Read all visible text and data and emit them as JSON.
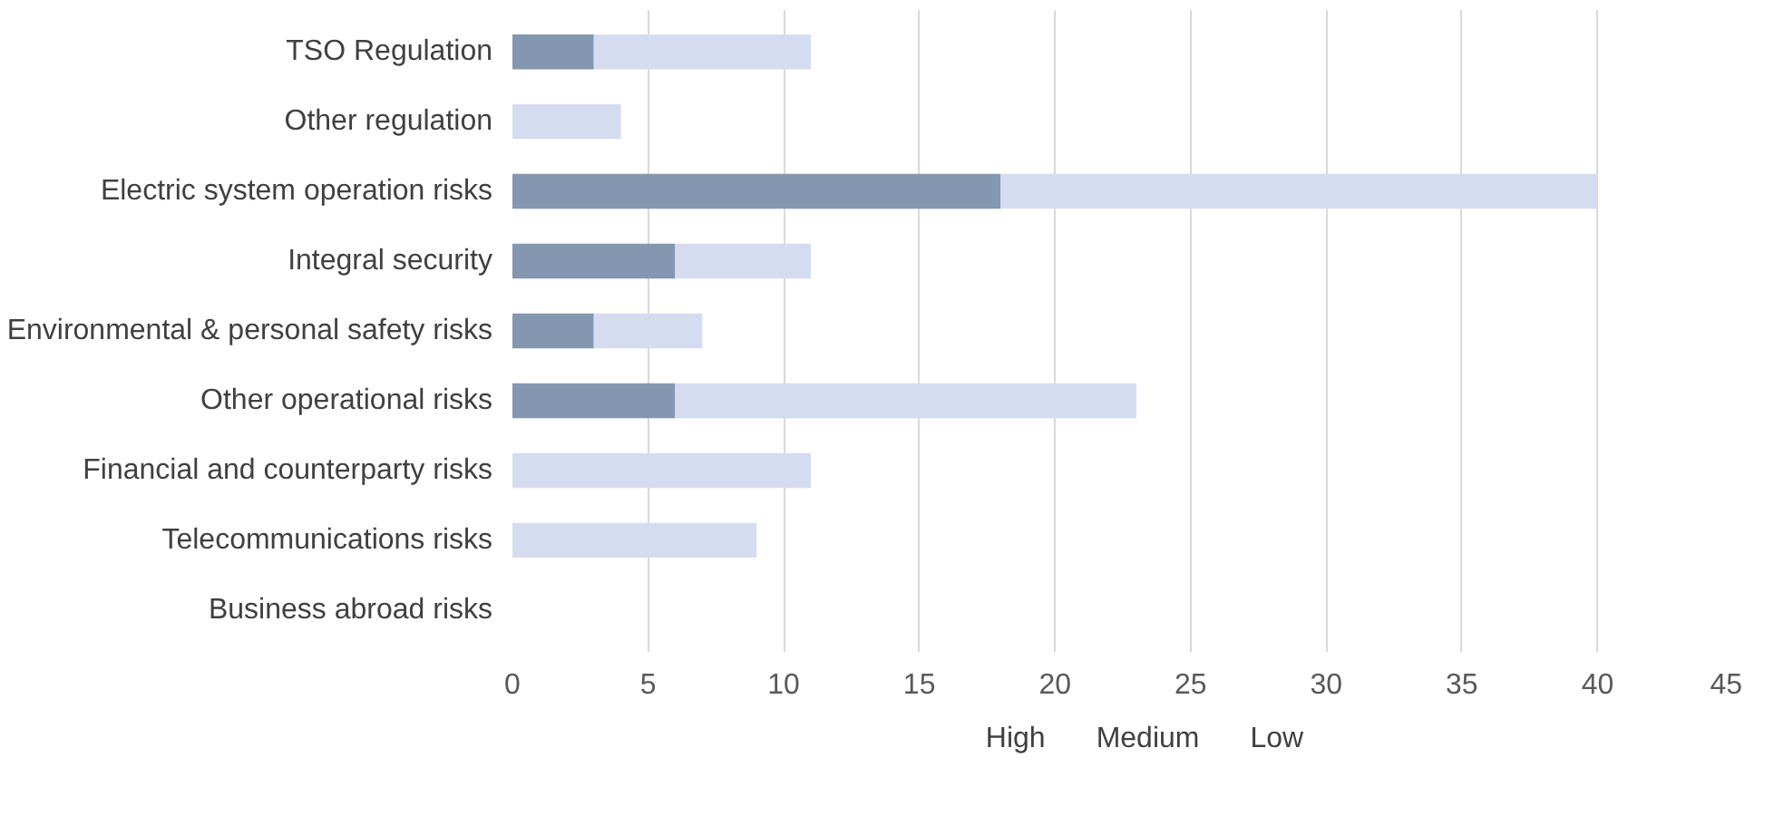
{
  "chart_data": {
    "type": "bar",
    "orientation": "horizontal",
    "stacked": true,
    "categories": [
      "TSO Regulation",
      "Other regulation",
      "Electric system operation risks",
      "Integral security",
      "Environmental & personal safety risks",
      "Other operational risks",
      "Financial and counterparty risks",
      "Telecommunications risks",
      "Business abroad risks"
    ],
    "series": [
      {
        "name": "High",
        "color": "#203864",
        "values": [
          0,
          0,
          0,
          0,
          0,
          0,
          0,
          0,
          0
        ]
      },
      {
        "name": "Medium",
        "color": "#8497b0",
        "values": [
          3,
          0,
          18,
          6,
          3,
          6,
          0,
          0,
          0
        ]
      },
      {
        "name": "Low",
        "color": "#d6dcf0",
        "values": [
          8,
          4,
          22,
          5,
          4,
          17,
          11,
          9,
          0
        ]
      }
    ],
    "xlim": [
      0,
      45
    ],
    "xticks": [
      0,
      5,
      10,
      15,
      20,
      25,
      30,
      35,
      40,
      45
    ],
    "grid": "x",
    "legend": "bottom"
  }
}
